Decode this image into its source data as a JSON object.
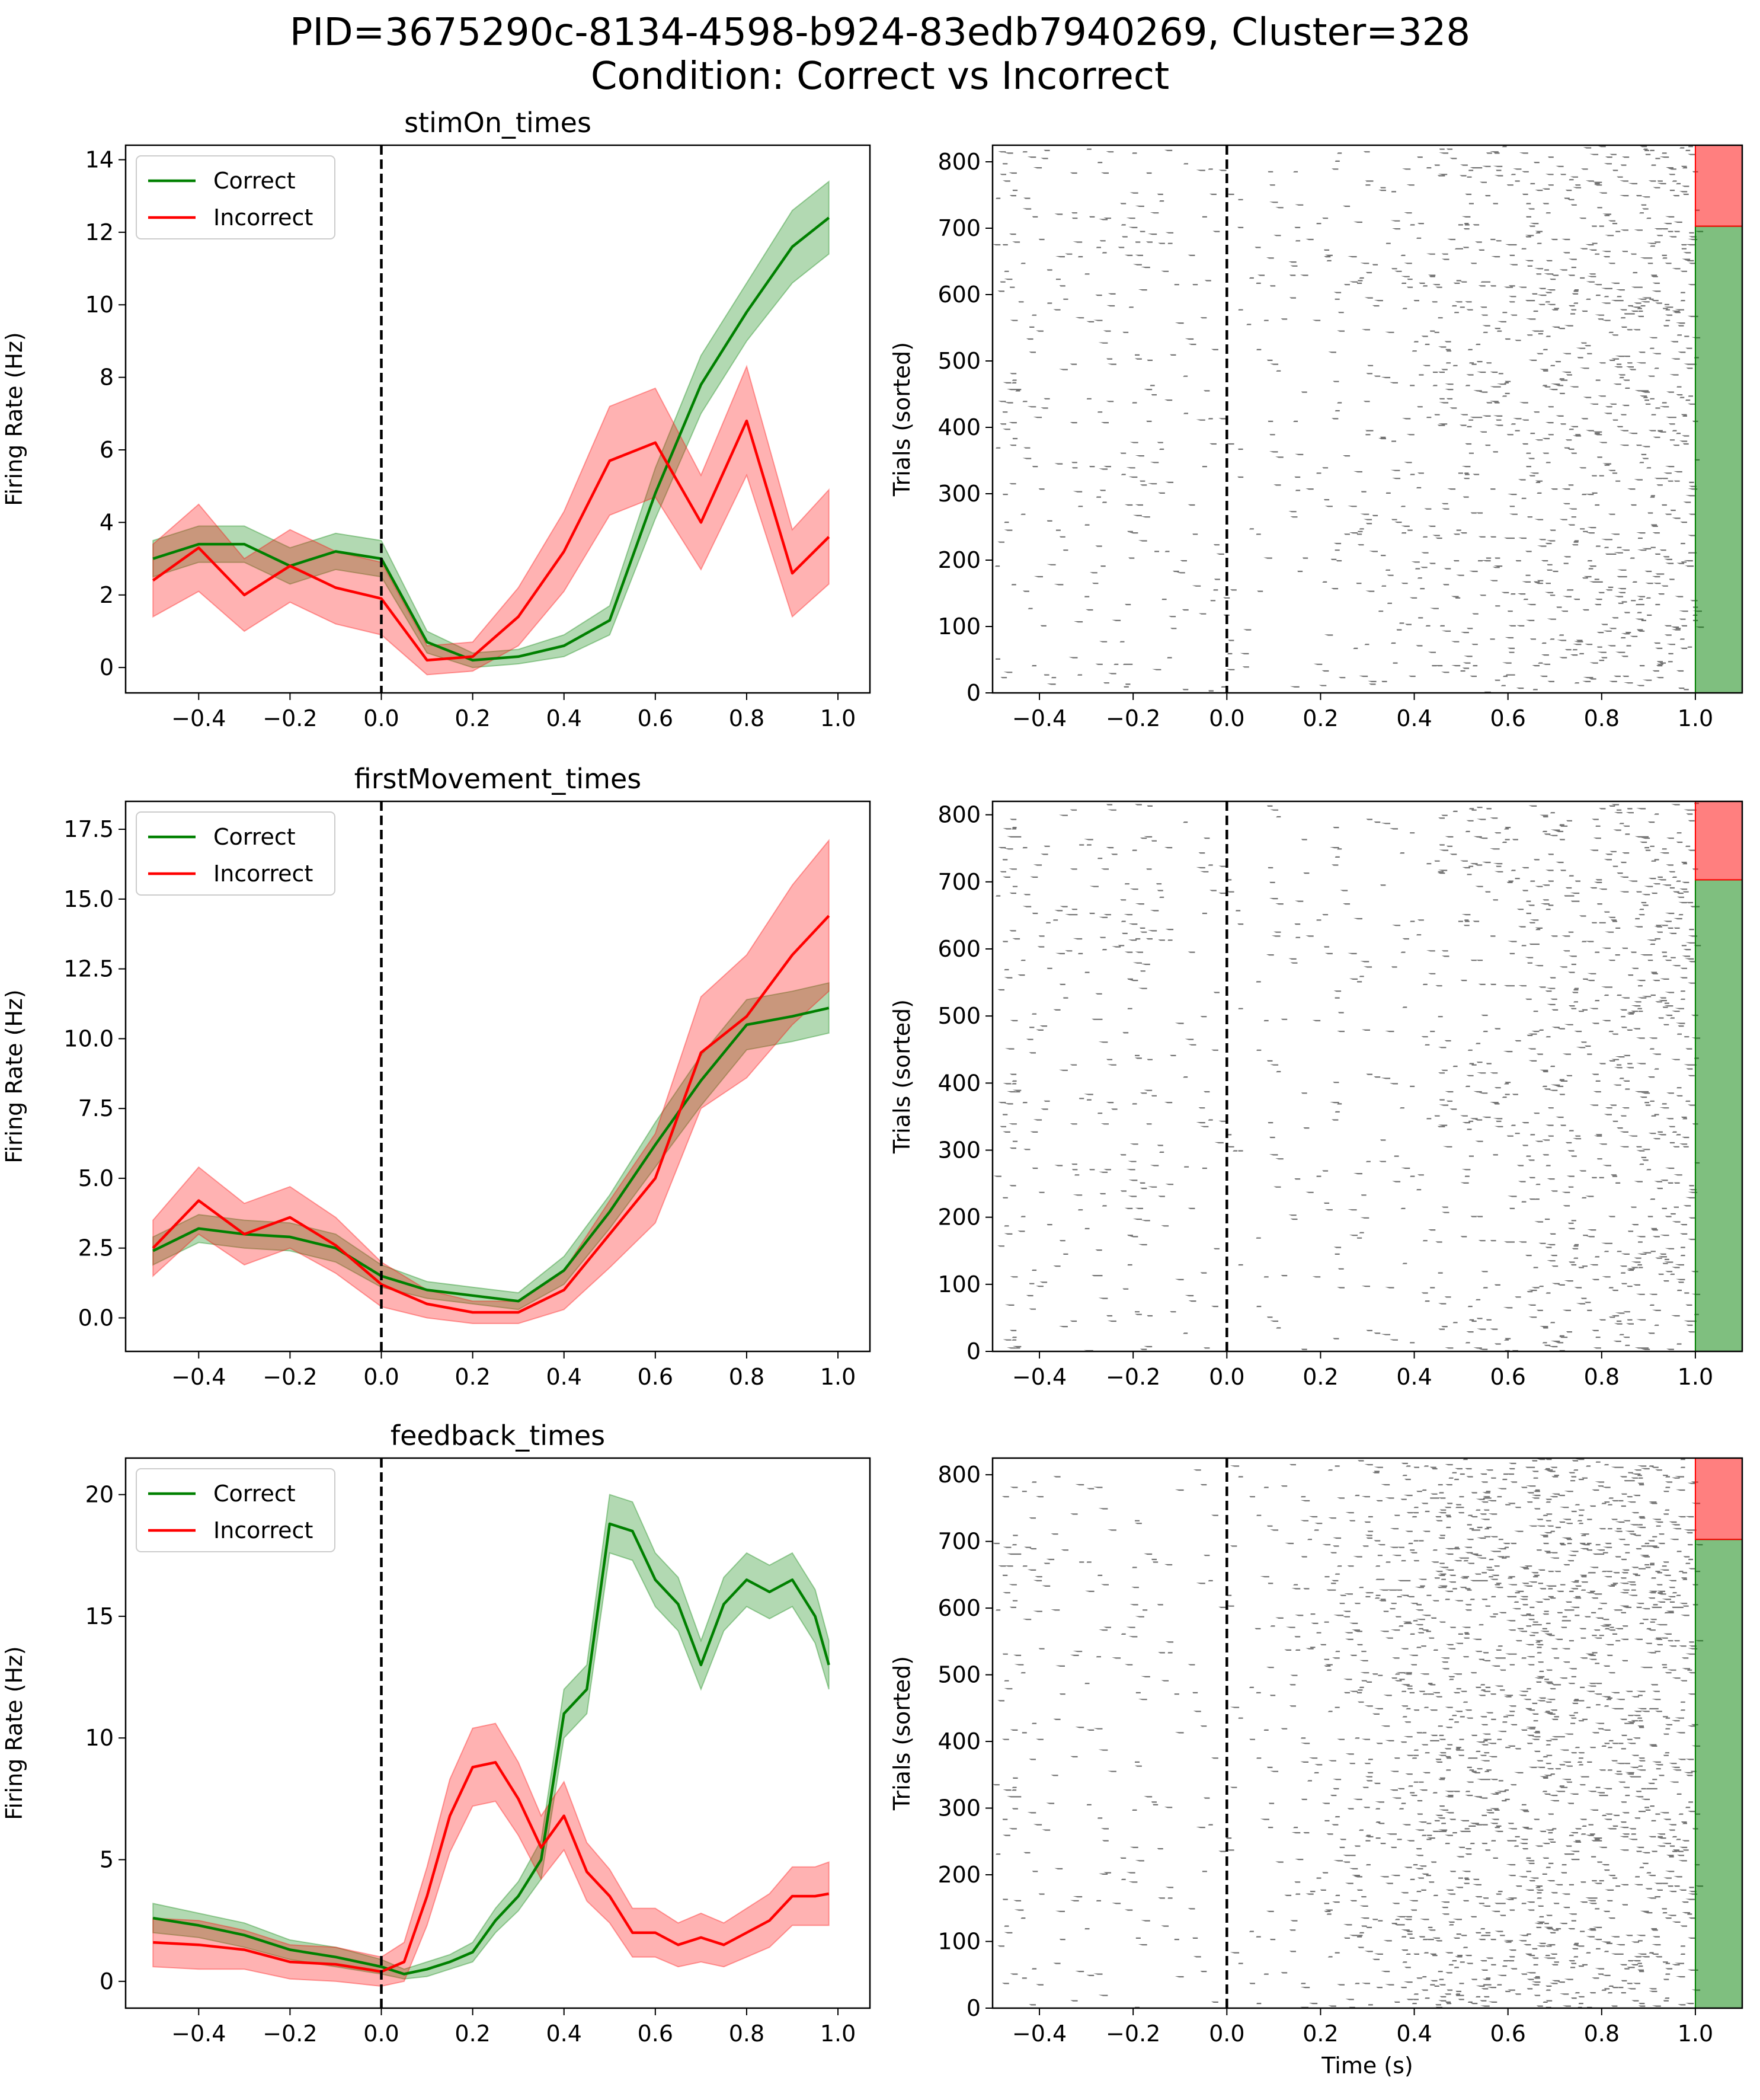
{
  "figure": {
    "title_line1": "PID=3675290c-8134-4598-b924-83edb7940269, Cluster=328",
    "title_line2": "Condition: Correct vs Incorrect"
  },
  "colors": {
    "correct": "#008000",
    "incorrect": "#ff0000",
    "correct_band": "#008000",
    "incorrect_band": "#ff0000",
    "raster": "#000000",
    "stimline": "#000000"
  },
  "chart_data": [
    {
      "type": "line",
      "title": "stimOn_times",
      "xlabel": "",
      "ylabel": "Firing Rate (Hz)",
      "xlim": [
        -0.56,
        1.07
      ],
      "ylim": [
        -0.7,
        14.4
      ],
      "xticks": [
        -0.4,
        -0.2,
        0.0,
        0.2,
        0.4,
        0.6,
        0.8,
        1.0
      ],
      "xtick_labels": [
        "−0.4",
        "−0.2",
        "0.0",
        "0.2",
        "0.4",
        "0.6",
        "0.8",
        "1.0"
      ],
      "yticks": [
        0,
        2,
        4,
        6,
        8,
        10,
        12,
        14
      ],
      "ytick_labels": [
        "0",
        "2",
        "4",
        "6",
        "8",
        "10",
        "12",
        "14"
      ],
      "vline_x": 0.0,
      "legend": {
        "position": "top-left",
        "entries": [
          "Correct",
          "Incorrect"
        ]
      },
      "x": [
        -0.5,
        -0.4,
        -0.3,
        -0.2,
        -0.1,
        0.0,
        0.1,
        0.2,
        0.3,
        0.4,
        0.5,
        0.6,
        0.7,
        0.8,
        0.9,
        0.98
      ],
      "series": [
        {
          "name": "Correct",
          "values": [
            3.0,
            3.4,
            3.4,
            2.8,
            3.2,
            3.0,
            0.7,
            0.2,
            0.3,
            0.6,
            1.3,
            4.8,
            7.8,
            9.8,
            11.6,
            12.4
          ],
          "err": [
            0.5,
            0.5,
            0.5,
            0.5,
            0.5,
            0.5,
            0.3,
            0.2,
            0.2,
            0.3,
            0.4,
            0.7,
            0.8,
            0.8,
            1.0,
            1.0
          ]
        },
        {
          "name": "Incorrect",
          "values": [
            2.4,
            3.3,
            2.0,
            2.8,
            2.2,
            1.9,
            0.2,
            0.3,
            1.4,
            3.2,
            5.7,
            6.2,
            4.0,
            6.8,
            2.6,
            3.6
          ],
          "err": [
            1.0,
            1.2,
            1.0,
            1.0,
            1.0,
            1.0,
            0.4,
            0.4,
            0.8,
            1.1,
            1.5,
            1.5,
            1.3,
            1.5,
            1.2,
            1.3
          ]
        }
      ]
    },
    {
      "type": "line",
      "title": "firstMovement_times",
      "xlabel": "",
      "ylabel": "Firing Rate (Hz)",
      "xlim": [
        -0.56,
        1.07
      ],
      "ylim": [
        -1.2,
        18.5
      ],
      "xticks": [
        -0.4,
        -0.2,
        0.0,
        0.2,
        0.4,
        0.6,
        0.8,
        1.0
      ],
      "xtick_labels": [
        "−0.4",
        "−0.2",
        "0.0",
        "0.2",
        "0.4",
        "0.6",
        "0.8",
        "1.0"
      ],
      "yticks": [
        0.0,
        2.5,
        5.0,
        7.5,
        10.0,
        12.5,
        15.0,
        17.5
      ],
      "ytick_labels": [
        "0.0",
        "2.5",
        "5.0",
        "7.5",
        "10.0",
        "12.5",
        "15.0",
        "17.5"
      ],
      "vline_x": 0.0,
      "legend": {
        "position": "top-left",
        "entries": [
          "Correct",
          "Incorrect"
        ]
      },
      "x": [
        -0.5,
        -0.4,
        -0.3,
        -0.2,
        -0.1,
        0.0,
        0.1,
        0.2,
        0.3,
        0.4,
        0.5,
        0.6,
        0.7,
        0.8,
        0.9,
        0.98
      ],
      "series": [
        {
          "name": "Correct",
          "values": [
            2.4,
            3.2,
            3.0,
            2.9,
            2.5,
            1.5,
            1.0,
            0.8,
            0.6,
            1.7,
            3.8,
            6.2,
            8.5,
            10.5,
            10.8,
            11.1
          ],
          "err": [
            0.5,
            0.5,
            0.5,
            0.5,
            0.5,
            0.4,
            0.3,
            0.3,
            0.3,
            0.5,
            0.6,
            0.8,
            0.9,
            0.9,
            0.9,
            0.9
          ]
        },
        {
          "name": "Incorrect",
          "values": [
            2.5,
            4.2,
            3.0,
            3.6,
            2.6,
            1.2,
            0.5,
            0.2,
            0.2,
            1.0,
            3.0,
            5.0,
            9.5,
            10.8,
            13.0,
            14.4
          ],
          "err": [
            1.0,
            1.2,
            1.1,
            1.1,
            1.0,
            0.8,
            0.5,
            0.4,
            0.4,
            0.7,
            1.2,
            1.6,
            2.0,
            2.2,
            2.5,
            2.7
          ]
        }
      ]
    },
    {
      "type": "line",
      "title": "feedback_times",
      "xlabel": "",
      "ylabel": "Firing Rate (Hz)",
      "xlim": [
        -0.56,
        1.07
      ],
      "ylim": [
        -1.1,
        21.5
      ],
      "xticks": [
        -0.4,
        -0.2,
        0.0,
        0.2,
        0.4,
        0.6,
        0.8,
        1.0
      ],
      "xtick_labels": [
        "−0.4",
        "−0.2",
        "0.0",
        "0.2",
        "0.4",
        "0.6",
        "0.8",
        "1.0"
      ],
      "yticks": [
        0,
        5,
        10,
        15,
        20
      ],
      "ytick_labels": [
        "0",
        "5",
        "10",
        "15",
        "20"
      ],
      "vline_x": 0.0,
      "legend": {
        "position": "top-left",
        "entries": [
          "Correct",
          "Incorrect"
        ]
      },
      "x": [
        -0.5,
        -0.4,
        -0.3,
        -0.2,
        -0.1,
        0.0,
        0.05,
        0.1,
        0.15,
        0.2,
        0.25,
        0.3,
        0.35,
        0.4,
        0.45,
        0.5,
        0.55,
        0.6,
        0.65,
        0.7,
        0.75,
        0.8,
        0.85,
        0.9,
        0.95,
        0.98
      ],
      "series": [
        {
          "name": "Correct",
          "values": [
            2.6,
            2.3,
            1.9,
            1.3,
            1.0,
            0.6,
            0.3,
            0.5,
            0.8,
            1.2,
            2.5,
            3.5,
            5.0,
            11.0,
            12.0,
            18.8,
            18.5,
            16.5,
            15.5,
            13.0,
            15.5,
            16.5,
            16.0,
            16.5,
            15.0,
            13.0
          ],
          "err": [
            0.6,
            0.5,
            0.5,
            0.4,
            0.4,
            0.3,
            0.2,
            0.3,
            0.3,
            0.4,
            0.5,
            0.6,
            0.8,
            1.0,
            1.0,
            1.2,
            1.2,
            1.1,
            1.1,
            1.0,
            1.1,
            1.1,
            1.1,
            1.1,
            1.1,
            1.0
          ]
        },
        {
          "name": "Incorrect",
          "values": [
            1.6,
            1.5,
            1.3,
            0.8,
            0.7,
            0.4,
            0.8,
            3.5,
            6.8,
            8.8,
            9.0,
            7.5,
            5.5,
            6.8,
            4.5,
            3.5,
            2.0,
            2.0,
            1.5,
            1.8,
            1.5,
            2.0,
            2.5,
            3.5,
            3.5,
            3.6
          ],
          "err": [
            1.0,
            1.0,
            0.8,
            0.7,
            0.7,
            0.6,
            0.8,
            1.2,
            1.5,
            1.6,
            1.6,
            1.5,
            1.3,
            1.4,
            1.2,
            1.1,
            1.0,
            1.0,
            0.9,
            1.0,
            0.9,
            1.0,
            1.1,
            1.2,
            1.2,
            1.3
          ]
        }
      ]
    },
    {
      "type": "heatmap",
      "title": "",
      "xlabel": "",
      "ylabel": "Trials (sorted)",
      "xlim": [
        -0.5,
        1.1
      ],
      "ylim": [
        0,
        825
      ],
      "xticks": [
        -0.4,
        -0.2,
        0.0,
        0.2,
        0.4,
        0.6,
        0.8,
        1.0
      ],
      "xtick_labels": [
        "−0.4",
        "−0.2",
        "0.0",
        "0.2",
        "0.4",
        "0.6",
        "0.8",
        "1.0"
      ],
      "yticks": [
        0,
        100,
        200,
        300,
        400,
        500,
        600,
        700,
        800
      ],
      "ytick_labels": [
        "0",
        "100",
        "200",
        "300",
        "400",
        "500",
        "600",
        "700",
        "800"
      ],
      "vline_x": 0.0,
      "condition_bar": {
        "x_start": 1.0,
        "correct_trials": [
          0,
          703
        ],
        "incorrect_trials": [
          703,
          825
        ]
      },
      "density_profile": {
        "x": [
          -0.5,
          -0.2,
          0.0,
          0.2,
          0.4,
          0.6,
          0.8,
          1.0
        ],
        "density": [
          0.25,
          0.2,
          0.15,
          0.12,
          0.3,
          0.55,
          0.7,
          0.7
        ]
      }
    },
    {
      "type": "heatmap",
      "title": "",
      "xlabel": "",
      "ylabel": "Trials (sorted)",
      "xlim": [
        -0.5,
        1.1
      ],
      "ylim": [
        0,
        820
      ],
      "xticks": [
        -0.4,
        -0.2,
        0.0,
        0.2,
        0.4,
        0.6,
        0.8,
        1.0
      ],
      "xtick_labels": [
        "−0.4",
        "−0.2",
        "0.0",
        "0.2",
        "0.4",
        "0.6",
        "0.8",
        "1.0"
      ],
      "yticks": [
        0,
        100,
        200,
        300,
        400,
        500,
        600,
        700,
        800
      ],
      "ytick_labels": [
        "0",
        "100",
        "200",
        "300",
        "400",
        "500",
        "600",
        "700",
        "800"
      ],
      "vline_x": 0.0,
      "condition_bar": {
        "x_start": 1.0,
        "correct_trials": [
          0,
          703
        ],
        "incorrect_trials": [
          703,
          820
        ]
      },
      "density_profile": {
        "x": [
          -0.5,
          -0.2,
          0.0,
          0.2,
          0.4,
          0.6,
          0.8,
          1.0
        ],
        "density": [
          0.25,
          0.22,
          0.12,
          0.1,
          0.15,
          0.4,
          0.6,
          0.7
        ]
      }
    },
    {
      "type": "heatmap",
      "title": "",
      "xlabel": "Time (s)",
      "ylabel": "Trials (sorted)",
      "xlim": [
        -0.5,
        1.1
      ],
      "ylim": [
        0,
        825
      ],
      "xticks": [
        -0.4,
        -0.2,
        0.0,
        0.2,
        0.4,
        0.6,
        0.8,
        1.0
      ],
      "xtick_labels": [
        "−0.4",
        "−0.2",
        "0.0",
        "0.2",
        "0.4",
        "0.6",
        "0.8",
        "1.0"
      ],
      "yticks": [
        0,
        100,
        200,
        300,
        400,
        500,
        600,
        700,
        800
      ],
      "ytick_labels": [
        "0",
        "100",
        "200",
        "300",
        "400",
        "500",
        "600",
        "700",
        "800"
      ],
      "vline_x": 0.0,
      "condition_bar": {
        "x_start": 1.0,
        "correct_trials": [
          0,
          703
        ],
        "incorrect_trials": [
          703,
          825
        ]
      },
      "density_profile": {
        "x": [
          -0.5,
          -0.2,
          0.0,
          0.2,
          0.4,
          0.6,
          0.8,
          1.0
        ],
        "density": [
          0.18,
          0.12,
          0.1,
          0.25,
          0.8,
          1.0,
          1.0,
          0.9
        ]
      }
    }
  ]
}
